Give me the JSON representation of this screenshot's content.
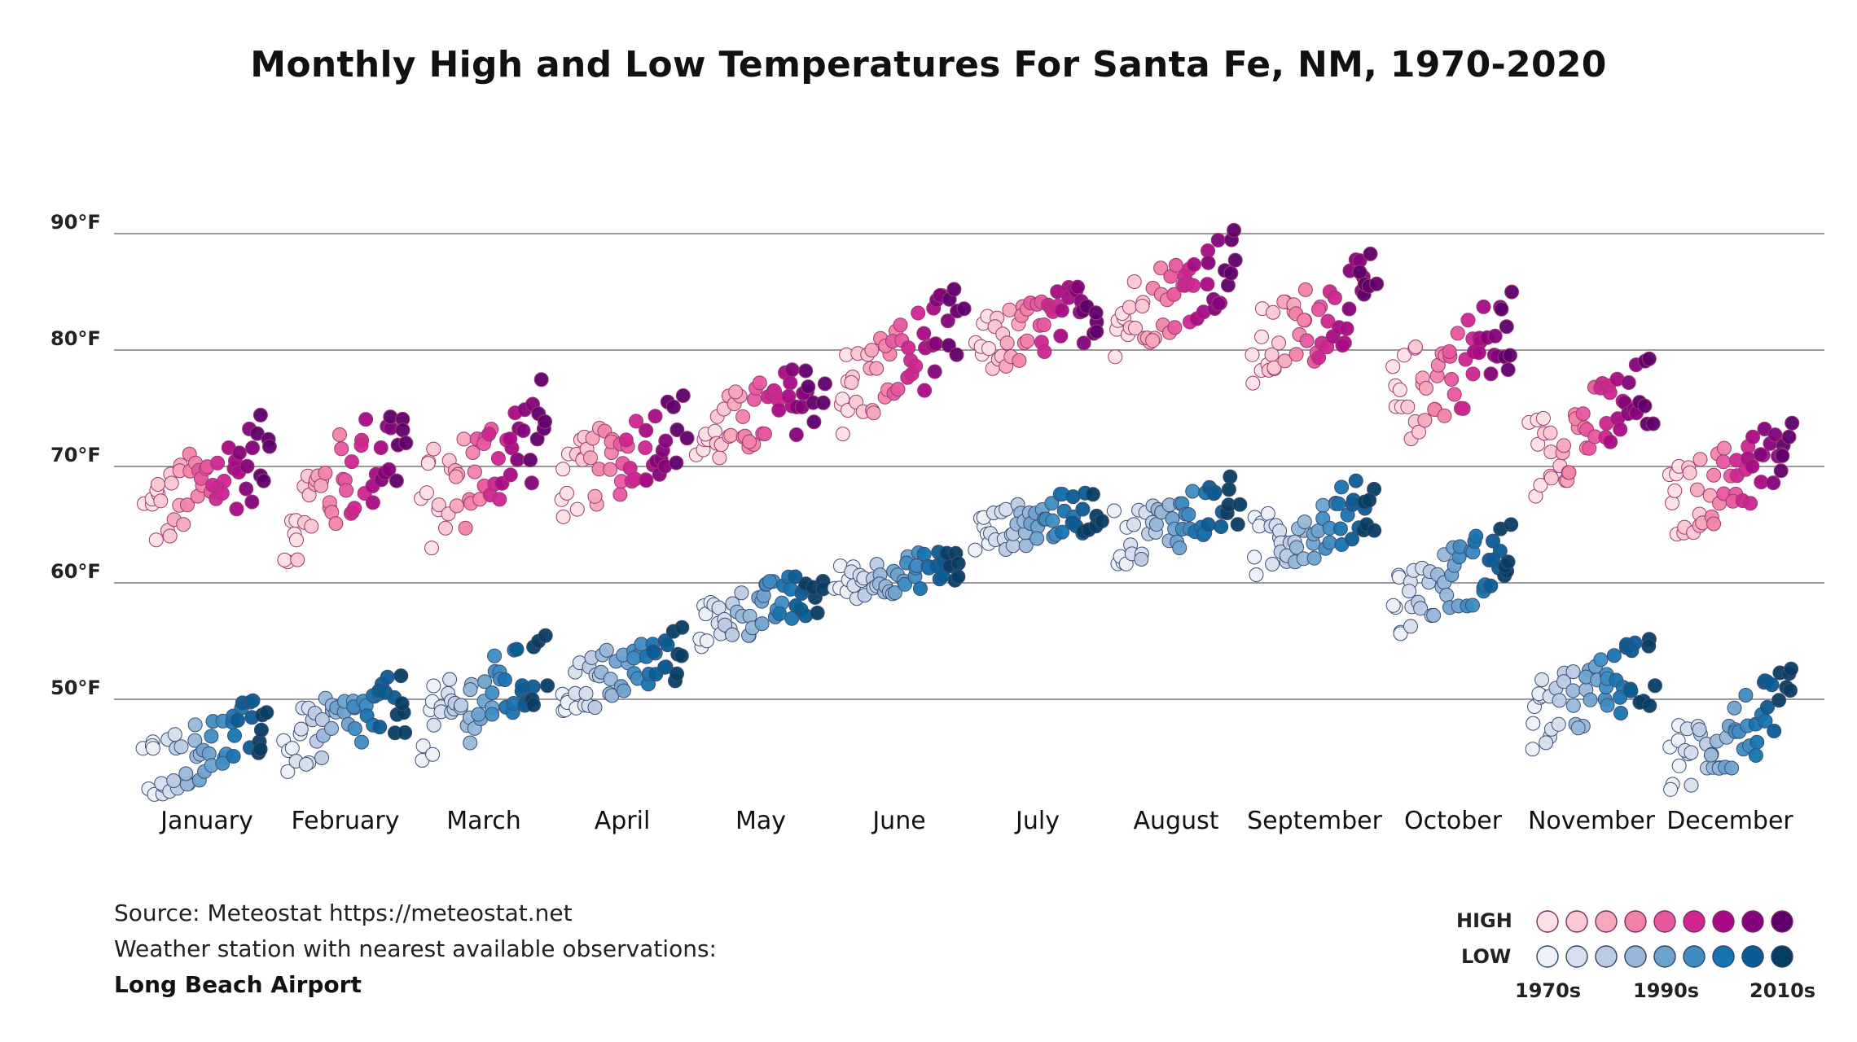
{
  "title": "Monthly High and Low Temperatures For Santa Fe, NM, 1970-2020",
  "source": {
    "line1": "Source: Meteostat https://meteostat.net",
    "line2": "Weather station with nearest available observations:",
    "station": "Long Beach Airport"
  },
  "legend": {
    "high_label": "HIGH",
    "low_label": "LOW",
    "decade_labels": [
      "1970s",
      "1990s",
      "2010s"
    ],
    "high_colors": [
      "#fde0e6",
      "#fbc8d3",
      "#f7a8bc",
      "#f283a8",
      "#e7579e",
      "#cf2590",
      "#a90a85",
      "#84037b",
      "#5e006b"
    ],
    "low_colors": [
      "#edf1f8",
      "#d7dfee",
      "#bccbe3",
      "#98b7d9",
      "#6ea2ce",
      "#3f8cc2",
      "#1774b0",
      "#0a5c94",
      "#083d62"
    ]
  },
  "chart_data": {
    "type": "scatter",
    "title": "Monthly High and Low Temperatures For Santa Fe, NM, 1970-2020",
    "xlabel": "",
    "ylabel": "",
    "categories": [
      "January",
      "February",
      "March",
      "April",
      "May",
      "June",
      "July",
      "August",
      "September",
      "October",
      "November",
      "December"
    ],
    "y_ticks": [
      "50°F",
      "60°F",
      "70°F",
      "80°F",
      "90°F"
    ],
    "y_tick_values": [
      50,
      60,
      70,
      80,
      90
    ],
    "ylim": [
      41,
      92
    ],
    "grid": "horizontal",
    "legend_position": "bottom-right",
    "years": "1970-2020",
    "series": [
      {
        "name": "HIGH",
        "approx_range_by_month": [
          [
            62,
            75
          ],
          [
            61,
            77
          ],
          [
            62,
            78
          ],
          [
            65,
            77
          ],
          [
            69,
            80
          ],
          [
            72,
            86
          ],
          [
            77,
            87
          ],
          [
            79,
            91
          ],
          [
            76,
            89
          ],
          [
            71,
            86
          ],
          [
            67,
            80
          ],
          [
            63,
            75
          ]
        ]
      },
      {
        "name": "LOW",
        "approx_range_by_month": [
          [
            41,
            51
          ],
          [
            43,
            53
          ],
          [
            44,
            56
          ],
          [
            48,
            57
          ],
          [
            54,
            62
          ],
          [
            58,
            64
          ],
          [
            62,
            69
          ],
          [
            61,
            70
          ],
          [
            60,
            70
          ],
          [
            55,
            66
          ],
          [
            45,
            56
          ],
          [
            41,
            53
          ]
        ]
      }
    ]
  }
}
